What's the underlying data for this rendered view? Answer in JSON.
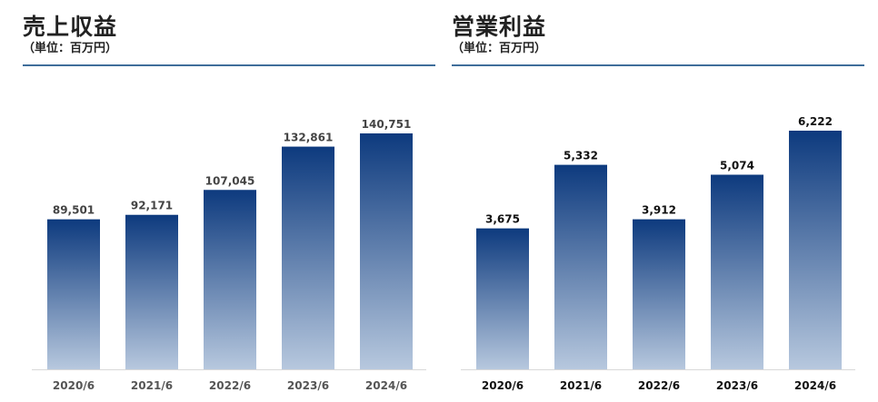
{
  "chart_data": [
    {
      "type": "bar",
      "title": "売上収益",
      "subtitle": "（単位：百万円）",
      "categories": [
        "2020/6",
        "2021/6",
        "2022/6",
        "2023/6",
        "2024/6"
      ],
      "values": [
        89501,
        92171,
        107045,
        132861,
        140751
      ],
      "value_labels": [
        "89,501",
        "92,171",
        "107,045",
        "132,861",
        "140,751"
      ],
      "ylim": [
        0,
        140751
      ],
      "grid": false,
      "colors": {
        "bar_top": "#0d3a7e",
        "bar_bottom": "#b7c8de",
        "label": "#444444",
        "tick": "#555555"
      }
    },
    {
      "type": "bar",
      "title": "営業利益",
      "subtitle": "（単位：百万円）",
      "categories": [
        "2020/6",
        "2021/6",
        "2022/6",
        "2023/6",
        "2024/6"
      ],
      "values": [
        3675,
        5332,
        3912,
        5074,
        6222
      ],
      "value_labels": [
        "3,675",
        "5,332",
        "3,912",
        "5,074",
        "6,222"
      ],
      "ylim": [
        0,
        6222
      ],
      "grid": false,
      "colors": {
        "bar_top": "#0d3a7e",
        "bar_bottom": "#b7c8de",
        "label": "#111111",
        "tick": "#111111"
      }
    }
  ]
}
